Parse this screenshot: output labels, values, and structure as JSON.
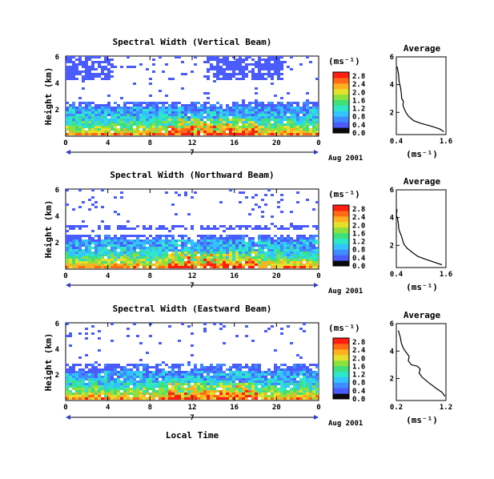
{
  "colorbar_colors": [
    "#0a0a0a",
    "#4b5cff",
    "#3e8cff",
    "#33c4ff",
    "#2ee6c8",
    "#3fe07a",
    "#8ee03c",
    "#e6e02a",
    "#ffb020",
    "#ff6a14",
    "#ff1e10"
  ],
  "panels": [
    {
      "title": "Spectral Width (Vertical Beam)",
      "ylabel": "Height (km)",
      "y_ticks": [
        "2",
        "4",
        "6"
      ],
      "x_ticks": [
        "0",
        "4",
        "8",
        "12",
        "16",
        "20",
        "0"
      ],
      "date_mid": "7",
      "date_label": "Aug 2001",
      "unit": "(ms⁻¹)",
      "colorbar_ticks": [
        "0.0",
        "0.4",
        "0.8",
        "1.2",
        "1.6",
        "2.0",
        "2.4",
        "2.8"
      ],
      "cb_max": 3.0,
      "avg_title": "Average",
      "avg_unit": "(ms⁻¹)",
      "avg_x_ticks": [
        "0.4",
        "1.6"
      ],
      "avg_y_ticks": [
        "2",
        "4",
        "6"
      ],
      "avg_profile": {
        "xlim": [
          0.4,
          1.6
        ],
        "ylim": [
          0.4,
          6
        ],
        "x": [
          0.42,
          0.45,
          0.47,
          0.5,
          0.52,
          0.53,
          0.57,
          0.56,
          0.6,
          0.63,
          0.7,
          0.82,
          1.0,
          1.25,
          1.45,
          1.55
        ],
        "y": [
          5.3,
          4.8,
          4.2,
          3.8,
          3.4,
          3.0,
          2.8,
          2.5,
          2.2,
          2.0,
          1.7,
          1.4,
          1.2,
          1.0,
          0.8,
          0.6
        ]
      }
    },
    {
      "title": "Spectral Width (Northward Beam)",
      "ylabel": "Height (km)",
      "y_ticks": [
        "2",
        "4",
        "6"
      ],
      "x_ticks": [
        "0",
        "4",
        "8",
        "12",
        "16",
        "20",
        "0"
      ],
      "date_mid": "7",
      "date_label": "Aug 2001",
      "unit": "(ms⁻¹)",
      "colorbar_ticks": [
        "0.0",
        "0.4",
        "0.8",
        "1.2",
        "1.6",
        "2.0",
        "2.4",
        "2.8"
      ],
      "cb_max": 3.0,
      "avg_title": "Average",
      "avg_unit": "(ms⁻¹)",
      "avg_x_ticks": [
        "0.4",
        "1.6"
      ],
      "avg_y_ticks": [
        "2",
        "4",
        "6"
      ],
      "avg_profile": {
        "xlim": [
          0.4,
          1.6
        ],
        "ylim": [
          0.4,
          6
        ],
        "x": [
          0.42,
          0.4,
          0.43,
          0.45,
          0.46,
          0.48,
          0.52,
          0.55,
          0.58,
          0.66,
          0.78,
          0.92,
          1.1,
          1.3,
          1.5
        ],
        "y": [
          4.6,
          4.2,
          3.9,
          3.5,
          3.2,
          3.0,
          2.7,
          2.4,
          2.1,
          1.8,
          1.5,
          1.2,
          1.0,
          0.8,
          0.6
        ]
      }
    },
    {
      "title": "Spectral Width (Eastward Beam)",
      "ylabel": "Height (km)",
      "y_ticks": [
        "2",
        "4",
        "6"
      ],
      "x_ticks": [
        "0",
        "4",
        "8",
        "12",
        "16",
        "20",
        "0"
      ],
      "date_mid": "7",
      "date_label": "Aug 2001",
      "unit": "(ms⁻¹)",
      "colorbar_ticks": [
        "0.0",
        "0.4",
        "0.8",
        "1.2",
        "1.6",
        "2.0",
        "2.4",
        "2.8"
      ],
      "cb_max": 3.0,
      "xlabel": "Local Time",
      "avg_title": "Average",
      "avg_unit": "(ms⁻¹)",
      "avg_x_ticks": [
        "0.2",
        "1.2"
      ],
      "avg_y_ticks": [
        "2",
        "4",
        "6"
      ],
      "avg_profile": {
        "xlim": [
          0.2,
          1.2
        ],
        "ylim": [
          0.4,
          6
        ],
        "x": [
          0.24,
          0.28,
          0.3,
          0.33,
          0.36,
          0.4,
          0.46,
          0.44,
          0.5,
          0.62,
          0.68,
          0.66,
          0.72,
          0.85,
          1.0,
          1.12,
          1.18
        ],
        "y": [
          5.5,
          5.0,
          4.6,
          4.3,
          4.1,
          3.9,
          3.6,
          3.3,
          3.0,
          2.9,
          2.7,
          2.4,
          2.1,
          1.7,
          1.3,
          1.0,
          0.7
        ]
      }
    }
  ],
  "chart_data": [
    {
      "type": "heatmap",
      "title": "Spectral Width (Vertical Beam)",
      "xlabel": "",
      "ylabel": "Height (km)",
      "xlim": [
        0,
        24
      ],
      "ylim": [
        0.4,
        6
      ],
      "colorbar_range": [
        0,
        3.0
      ]
    },
    {
      "type": "line",
      "title": "Average",
      "xlabel": "(ms⁻¹)",
      "ylabel": "Height (km)",
      "xlim": [
        0.4,
        1.6
      ],
      "ylim": [
        0.4,
        6
      ]
    },
    {
      "type": "heatmap",
      "title": "Spectral Width (Northward Beam)",
      "xlabel": "",
      "ylabel": "Height (km)",
      "xlim": [
        0,
        24
      ],
      "ylim": [
        0.4,
        6
      ],
      "colorbar_range": [
        0,
        3.0
      ]
    },
    {
      "type": "line",
      "title": "Average",
      "xlabel": "(ms⁻¹)",
      "ylabel": "Height (km)",
      "xlim": [
        0.4,
        1.6
      ],
      "ylim": [
        0.4,
        6
      ]
    },
    {
      "type": "heatmap",
      "title": "Spectral Width (Eastward Beam)",
      "xlabel": "Local Time",
      "ylabel": "Height (km)",
      "xlim": [
        0,
        24
      ],
      "ylim": [
        0.4,
        6
      ],
      "colorbar_range": [
        0,
        3.0
      ]
    },
    {
      "type": "line",
      "title": "Average",
      "xlabel": "(ms⁻¹)",
      "ylabel": "Height (km)",
      "xlim": [
        0.2,
        1.2
      ],
      "ylim": [
        0.4,
        6
      ]
    }
  ]
}
